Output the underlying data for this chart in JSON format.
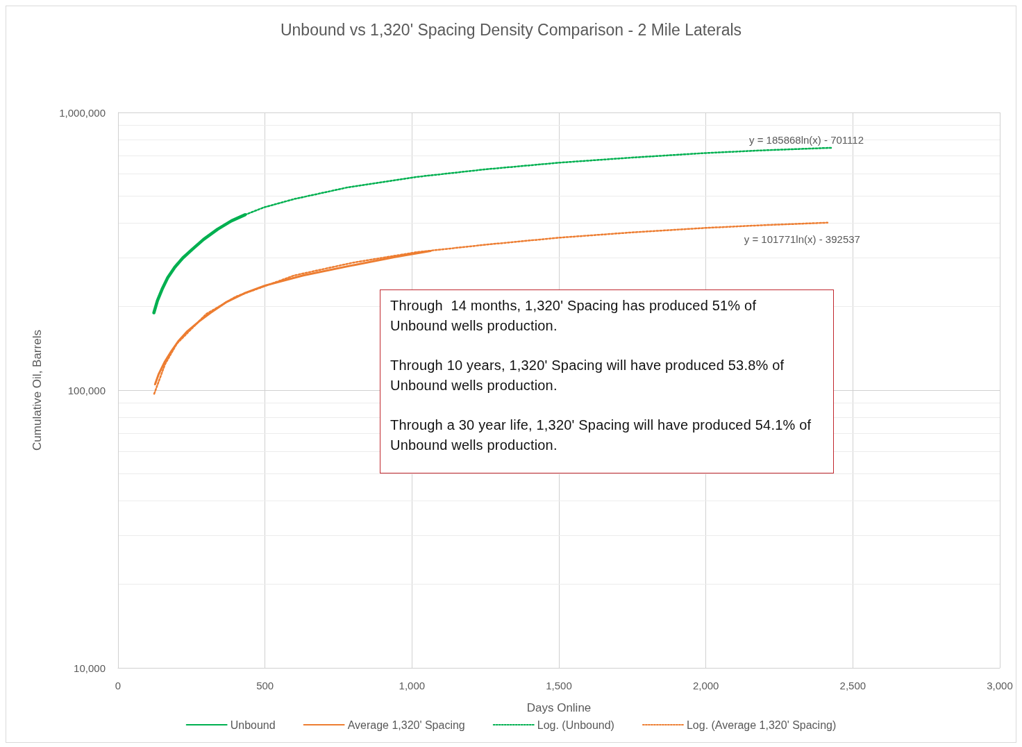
{
  "chart_data": {
    "type": "line",
    "title": "Unbound vs 1,320' Spacing Density Comparison - 2 Mile Laterals",
    "xlabel": "Days Online",
    "ylabel": "Cumulative Oil, Barrels",
    "annotations": [
      {
        "text": "y = 185868ln(x) - 701112",
        "x": 2426,
        "y": 746000
      },
      {
        "text": "y = 101771ln(x) - 392537",
        "x": 2414,
        "y": 401000
      },
      "Through  14 months, 1,320' Spacing has produced 51% of\nUnbound wells production.",
      "Through 10 years, 1,320' Spacing will have produced 53.8% of\nUnbound wells production.",
      "Through a 30 year life, 1,320' Spacing will have produced 54.1% of\nUnbound wells production."
    ],
    "series": [
      {
        "name": "Unbound",
        "color": "#00b050",
        "line_style": "solid",
        "x": [
          122,
          134,
          150,
          169,
          193,
          220,
          252,
          291,
          339,
          386,
          432
        ],
        "values": [
          190000,
          210000,
          231000,
          254000,
          277000,
          299000,
          321000,
          349000,
          380000,
          407000,
          428000
        ]
      },
      {
        "name": "Average 1,320' Spacing",
        "color": "#ed7d31",
        "line_style": "solid",
        "x": [
          126,
          138,
          158,
          181,
          205,
          236,
          276,
          315,
          370,
          433,
          500,
          630,
          787,
          945,
          1063
        ],
        "values": [
          105000,
          114000,
          126000,
          138000,
          150000,
          163000,
          177000,
          190000,
          208000,
          224000,
          238000,
          259000,
          280000,
          302000,
          317000
        ]
      },
      {
        "name": "Log. (Unbound)",
        "type": "line",
        "color": "#00b050",
        "line_style": "dotted",
        "x": [
          432,
          496,
          600,
          780,
          1016,
          1250,
          1498,
          1750,
          1995,
          2200,
          2426
        ],
        "values": [
          428000,
          455000,
          488000,
          537000,
          586000,
          624000,
          659000,
          688000,
          714000,
          731000,
          746000
        ]
      },
      {
        "name": "Log. (Average 1,320' Spacing)",
        "type": "line",
        "color": "#ed7d31",
        "line_style": "dotted",
        "x": [
          123,
          160,
          200,
          300,
          400,
          600,
          800,
          1016,
          1250,
          1500,
          1750,
          2000,
          2200,
          2414
        ],
        "values": [
          97000,
          124000,
          147000,
          188000,
          217000,
          259000,
          288000,
          314000,
          334000,
          354000,
          370000,
          384000,
          393000,
          401000
        ]
      }
    ],
    "xlim": [
      0,
      3000
    ],
    "xticks": [
      0,
      500,
      {
        "value": 1000,
        "label": "1,000"
      },
      {
        "value": 1500,
        "label": "1,500"
      },
      {
        "value": 2000,
        "label": "2,000"
      },
      {
        "value": 2500,
        "label": "2,500"
      },
      {
        "value": 3000,
        "label": "3,000"
      }
    ],
    "ylim": [
      10000,
      1000000
    ],
    "yticks": [
      {
        "value": 10000,
        "label": "10,000"
      },
      {
        "value": 100000,
        "label": "100,000"
      },
      {
        "value": 1000000,
        "label": "1,000,000"
      }
    ],
    "log": "y",
    "grid": true,
    "legend": "bottom",
    "marker": "none"
  }
}
